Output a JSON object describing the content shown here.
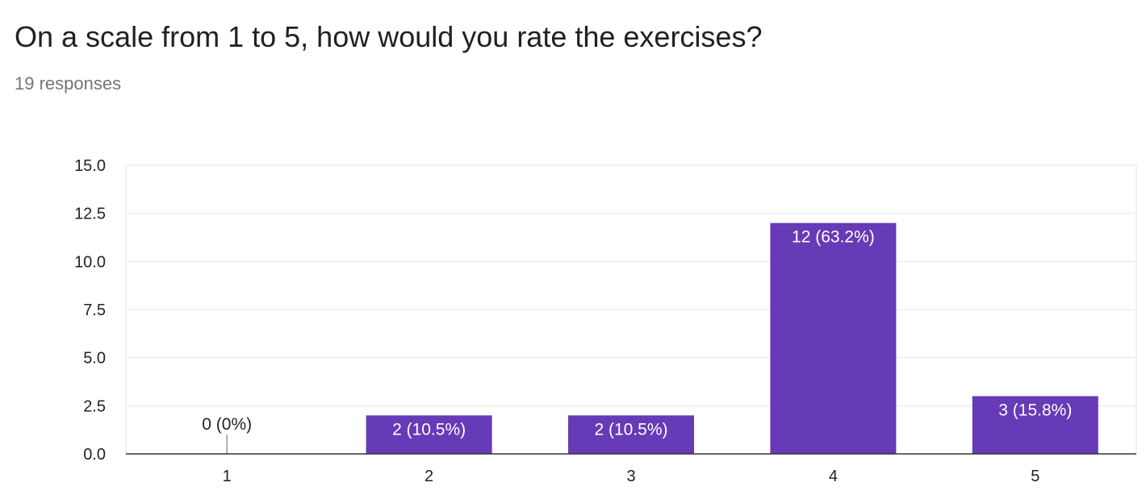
{
  "question": {
    "title": "On a scale from 1 to 5, how would you rate the exercises?",
    "responses": "19 responses"
  },
  "colors": {
    "bar": "#673ab7",
    "label_inside": "#ffffff",
    "label_outside": "#222222",
    "grid": "#e6e6e6",
    "axis": "#333333"
  },
  "chart_data": {
    "type": "bar",
    "categories": [
      "1",
      "2",
      "3",
      "4",
      "5"
    ],
    "values": [
      0,
      2,
      2,
      12,
      3
    ],
    "data_labels": [
      "0 (0%)",
      "2 (10.5%)",
      "2 (10.5%)",
      "12 (63.2%)",
      "3 (15.8%)"
    ],
    "y_ticks": [
      "0.0",
      "2.5",
      "5.0",
      "7.5",
      "10.0",
      "12.5",
      "15.0"
    ],
    "y_tick_values": [
      0,
      2.5,
      5,
      7.5,
      10,
      12.5,
      15
    ],
    "ylim": [
      0,
      15
    ],
    "grid": true
  }
}
